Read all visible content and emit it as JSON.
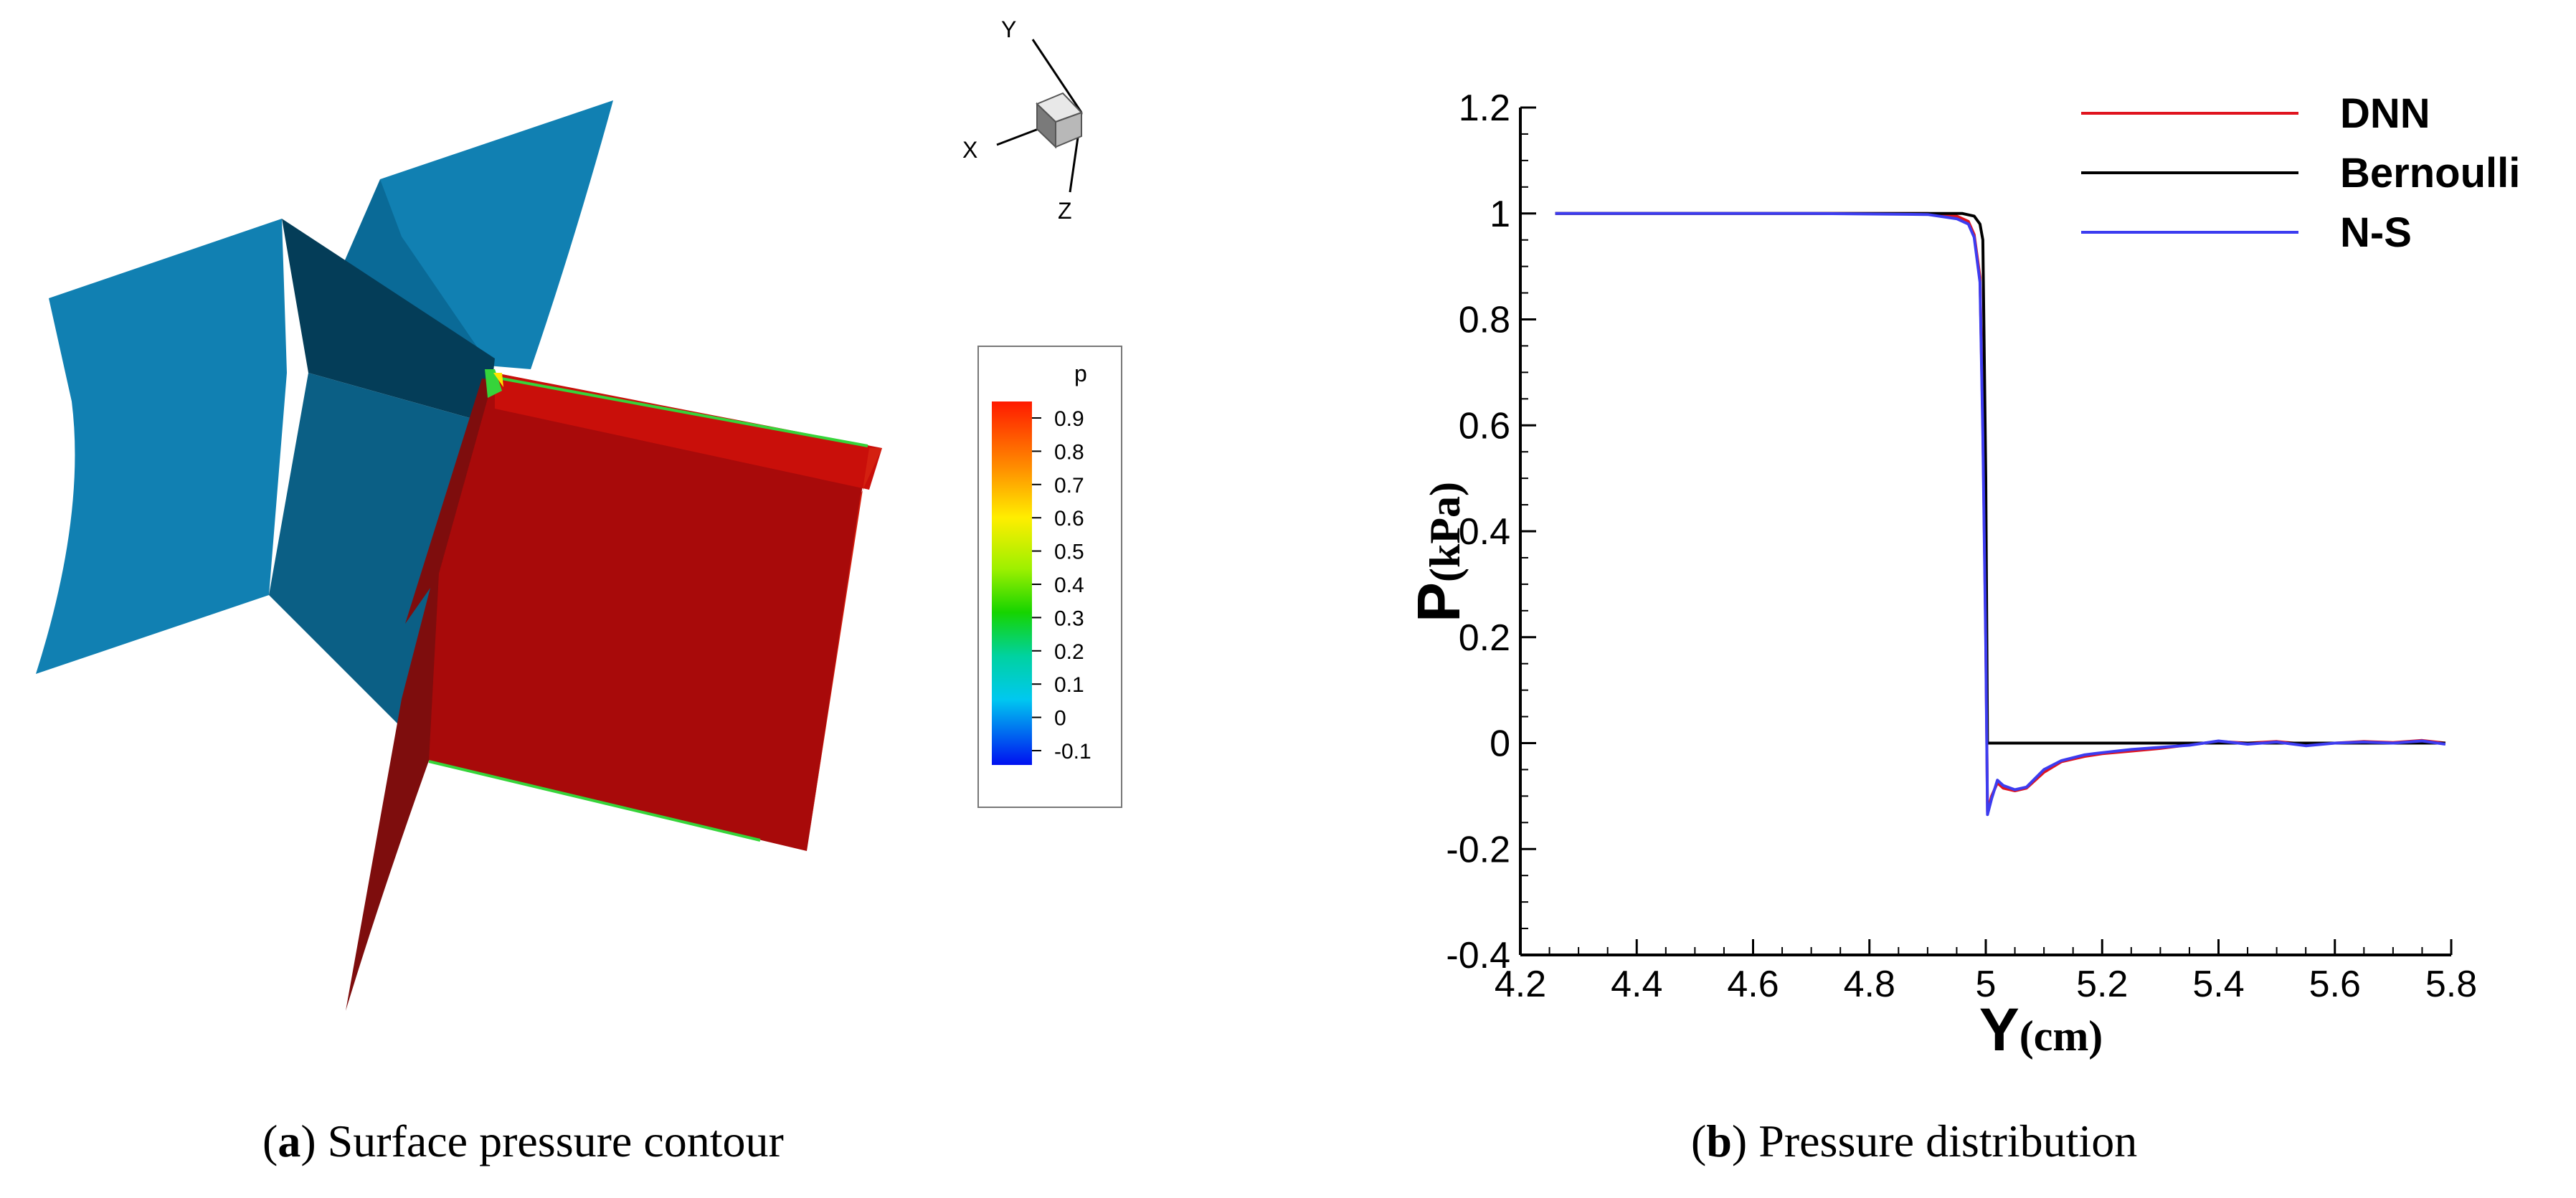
{
  "captions": [
    {
      "letter": "a",
      "text": "Surface pressure contour"
    },
    {
      "letter": "b",
      "text": "Pressure distribution"
    }
  ],
  "contour": {
    "axis_triad": {
      "labels": [
        "Y",
        "X",
        "Z"
      ]
    },
    "legend": {
      "variable": "p",
      "levels": [
        "0.9",
        "0.8",
        "0.7",
        "0.6",
        "0.5",
        "0.4",
        "0.3",
        "0.2",
        "0.1",
        "0",
        "-0.1"
      ]
    },
    "colors": {
      "low": "#0a7ab0",
      "high": "#c00c08",
      "edge": "#36d43a"
    }
  },
  "chart_data": {
    "type": "line",
    "xlabel_main": "Y",
    "xlabel_unit": "(cm)",
    "ylabel_main": "P",
    "ylabel_unit": "(kPa)",
    "xlim": [
      4.2,
      5.8
    ],
    "ylim": [
      -0.4,
      1.2
    ],
    "xticks": [
      "4.2",
      "4.4",
      "4.6",
      "4.8",
      "5",
      "5.2",
      "5.4",
      "5.6",
      "5.8"
    ],
    "yticks": [
      "-0.4",
      "-0.2",
      "0",
      "0.2",
      "0.4",
      "0.6",
      "0.8",
      "1",
      "1.2"
    ],
    "grid": false,
    "legend_position": "top-right",
    "series": [
      {
        "name": "DNN",
        "color": "#e0141e",
        "x": [
          4.26,
          4.5,
          4.7,
          4.9,
          4.95,
          4.97,
          4.98,
          4.99,
          4.995,
          5.0,
          5.003,
          5.01,
          5.02,
          5.03,
          5.05,
          5.07,
          5.1,
          5.13,
          5.17,
          5.2,
          5.25,
          5.3,
          5.35,
          5.4,
          5.45,
          5.5,
          5.55,
          5.6,
          5.65,
          5.7,
          5.75,
          5.79
        ],
        "y": [
          1.0,
          1.0,
          1.0,
          1.0,
          0.995,
          0.985,
          0.96,
          0.88,
          0.6,
          0.2,
          -0.13,
          -0.1,
          -0.075,
          -0.085,
          -0.09,
          -0.085,
          -0.055,
          -0.035,
          -0.025,
          -0.02,
          -0.015,
          -0.01,
          -0.003,
          0.003,
          0.0,
          0.003,
          -0.002,
          0.0,
          0.003,
          0.001,
          0.005,
          0.0
        ]
      },
      {
        "name": "Bernoulli",
        "color": "#000000",
        "x": [
          4.26,
          4.5,
          4.7,
          4.9,
          4.96,
          4.98,
          4.99,
          4.995,
          5.0,
          5.003,
          5.2,
          5.4,
          5.6,
          5.79
        ],
        "y": [
          1.0,
          1.0,
          1.0,
          1.0,
          1.0,
          0.995,
          0.98,
          0.95,
          0.5,
          0.0,
          0.0,
          0.0,
          0.0,
          0.0
        ]
      },
      {
        "name": "N-S",
        "color": "#3c3cf0",
        "x": [
          4.26,
          4.5,
          4.7,
          4.9,
          4.95,
          4.97,
          4.98,
          4.99,
          4.995,
          5.0,
          5.003,
          5.01,
          5.02,
          5.03,
          5.05,
          5.07,
          5.1,
          5.13,
          5.17,
          5.2,
          5.25,
          5.3,
          5.35,
          5.4,
          5.45,
          5.5,
          5.55,
          5.6,
          5.65,
          5.7,
          5.75,
          5.79
        ],
        "y": [
          1.0,
          1.0,
          1.0,
          0.998,
          0.99,
          0.98,
          0.955,
          0.87,
          0.58,
          0.18,
          -0.135,
          -0.105,
          -0.07,
          -0.08,
          -0.088,
          -0.083,
          -0.05,
          -0.033,
          -0.022,
          -0.018,
          -0.012,
          -0.008,
          -0.004,
          0.004,
          -0.002,
          0.002,
          -0.005,
          0.0,
          0.002,
          0.0,
          0.004,
          -0.002
        ]
      }
    ]
  }
}
